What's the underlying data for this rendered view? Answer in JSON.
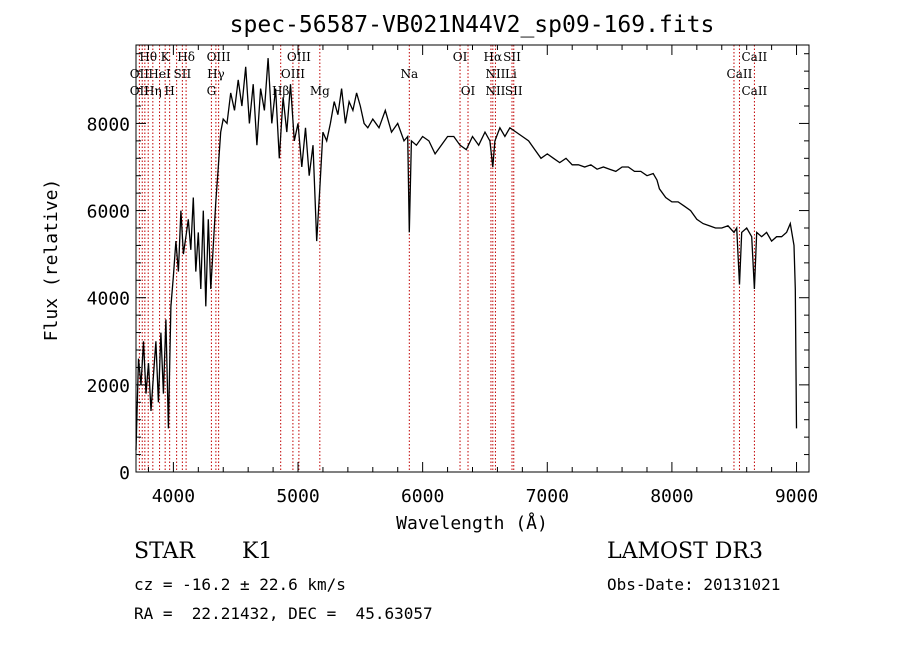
{
  "chart_data": {
    "type": "line",
    "title": "spec-56587-VB021N44V2_sp09-169.fits",
    "xlabel": "Wavelength (Å)",
    "ylabel": "Flux (relative)",
    "xlim": [
      3700,
      9100
    ],
    "ylim": [
      0,
      9800
    ],
    "x_ticks": [
      4000,
      5000,
      6000,
      7000,
      8000,
      9000
    ],
    "y_ticks": [
      0,
      2000,
      4000,
      6000,
      8000
    ],
    "grid": false,
    "series": [
      {
        "color": "#000000",
        "x": [
          3700,
          3720,
          3740,
          3760,
          3780,
          3800,
          3820,
          3840,
          3860,
          3880,
          3900,
          3920,
          3940,
          3960,
          3980,
          4000,
          4020,
          4040,
          4060,
          4080,
          4100,
          4120,
          4140,
          4160,
          4180,
          4200,
          4220,
          4240,
          4260,
          4280,
          4300,
          4320,
          4340,
          4360,
          4380,
          4400,
          4430,
          4460,
          4490,
          4520,
          4550,
          4580,
          4610,
          4640,
          4670,
          4700,
          4730,
          4760,
          4790,
          4820,
          4850,
          4880,
          4910,
          4940,
          4970,
          5000,
          5030,
          5060,
          5090,
          5120,
          5150,
          5175,
          5200,
          5230,
          5260,
          5290,
          5320,
          5350,
          5380,
          5410,
          5440,
          5470,
          5500,
          5530,
          5560,
          5600,
          5650,
          5700,
          5750,
          5800,
          5850,
          5880,
          5893,
          5910,
          5950,
          6000,
          6050,
          6100,
          6150,
          6200,
          6250,
          6300,
          6350,
          6400,
          6450,
          6500,
          6540,
          6563,
          6580,
          6620,
          6660,
          6700,
          6750,
          6800,
          6850,
          6900,
          6950,
          7000,
          7050,
          7100,
          7150,
          7200,
          7250,
          7300,
          7350,
          7400,
          7450,
          7500,
          7550,
          7600,
          7650,
          7700,
          7750,
          7800,
          7850,
          7880,
          7900,
          7950,
          8000,
          8050,
          8100,
          8150,
          8200,
          8250,
          8300,
          8350,
          8400,
          8450,
          8498,
          8520,
          8542,
          8560,
          8600,
          8640,
          8662,
          8680,
          8720,
          8760,
          8800,
          8840,
          8880,
          8920,
          8950,
          8980,
          8990,
          9000
        ],
        "y": [
          500,
          2600,
          2000,
          3000,
          1800,
          2500,
          1400,
          2200,
          3000,
          1600,
          3200,
          1800,
          3500,
          1000,
          3800,
          4500,
          5300,
          4600,
          6000,
          5000,
          5400,
          5800,
          5100,
          6300,
          4600,
          5500,
          4200,
          6000,
          3800,
          5800,
          4200,
          5200,
          6200,
          7000,
          7800,
          8100,
          8000,
          8700,
          8300,
          9000,
          8400,
          9300,
          8000,
          8900,
          7500,
          8800,
          8300,
          9500,
          8000,
          8800,
          7200,
          8600,
          7800,
          8900,
          7600,
          8000,
          7000,
          7900,
          6800,
          7500,
          5300,
          6500,
          7800,
          7600,
          8000,
          8500,
          8200,
          8800,
          8000,
          8500,
          8300,
          8700,
          8400,
          8000,
          7900,
          8100,
          7900,
          8300,
          7800,
          8000,
          7600,
          7700,
          5500,
          7600,
          7500,
          7700,
          7600,
          7300,
          7500,
          7700,
          7700,
          7500,
          7400,
          7700,
          7500,
          7800,
          7600,
          7000,
          7600,
          7900,
          7700,
          7900,
          7800,
          7700,
          7600,
          7400,
          7200,
          7300,
          7200,
          7100,
          7200,
          7050,
          7050,
          7000,
          7050,
          6950,
          7000,
          6950,
          6900,
          7000,
          7000,
          6900,
          6900,
          6800,
          6850,
          6700,
          6500,
          6300,
          6200,
          6200,
          6100,
          6000,
          5800,
          5700,
          5650,
          5600,
          5600,
          5650,
          5500,
          5600,
          4300,
          5500,
          5600,
          5400,
          4200,
          5500,
          5400,
          5500,
          5300,
          5400,
          5400,
          5500,
          5700,
          5200,
          4200,
          1000
        ]
      }
    ],
    "lines": {
      "x": [
        3727,
        3750,
        3771,
        3798,
        3835,
        3889,
        3934,
        3970,
        4026,
        4072,
        4102,
        4305,
        4341,
        4363,
        4861,
        4959,
        5007,
        5175,
        5893,
        6300,
        6364,
        6548,
        6563,
        6584,
        6717,
        6731,
        8498,
        8542,
        8662
      ],
      "labels": [
        {
          "text": "Hθ",
          "x": 3798,
          "row": 1
        },
        {
          "text": "K",
          "x": 3934,
          "row": 1
        },
        {
          "text": "Hδ",
          "x": 4102,
          "row": 1
        },
        {
          "text": "OIII",
          "x": 4363,
          "row": 1
        },
        {
          "text": "OIII",
          "x": 5007,
          "row": 1
        },
        {
          "text": "OI",
          "x": 6300,
          "row": 1
        },
        {
          "text": "Hα",
          "x": 6563,
          "row": 1
        },
        {
          "text": "SII",
          "x": 6717,
          "row": 1
        },
        {
          "text": "CaII",
          "x": 8662,
          "row": 1
        },
        {
          "text": "OII",
          "x": 3727,
          "row": 2
        },
        {
          "text": "HeI",
          "x": 3889,
          "row": 2
        },
        {
          "text": "SII",
          "x": 4072,
          "row": 2
        },
        {
          "text": "Hγ",
          "x": 4341,
          "row": 2
        },
        {
          "text": "OIII",
          "x": 4959,
          "row": 2
        },
        {
          "text": "Na",
          "x": 5893,
          "row": 2
        },
        {
          "text": "NII",
          "x": 6584,
          "row": 2
        },
        {
          "text": "Li",
          "x": 6708,
          "row": 2
        },
        {
          "text": "CaII",
          "x": 8542,
          "row": 2
        },
        {
          "text": "OII",
          "x": 3727,
          "row": 3
        },
        {
          "text": "Hη",
          "x": 3835,
          "row": 3
        },
        {
          "text": "H",
          "x": 3970,
          "row": 3
        },
        {
          "text": "G",
          "x": 4305,
          "row": 3
        },
        {
          "text": "Hβ",
          "x": 4861,
          "row": 3
        },
        {
          "text": "Mg",
          "x": 5175,
          "row": 3
        },
        {
          "text": "OI",
          "x": 6364,
          "row": 3
        },
        {
          "text": "NII",
          "x": 6584,
          "row": 3
        },
        {
          "text": "SII",
          "x": 6731,
          "row": 3
        },
        {
          "text": "CaII",
          "x": 8662,
          "row": 3
        }
      ]
    }
  },
  "info": {
    "class_type": "STAR",
    "subclass": "K1",
    "survey": "LAMOST DR3",
    "cz": "cz = -16.2 ± 22.6 km/s",
    "obs_date": "Obs-Date: 20131021",
    "coords": "RA =  22.21432, DEC =  45.63057"
  }
}
